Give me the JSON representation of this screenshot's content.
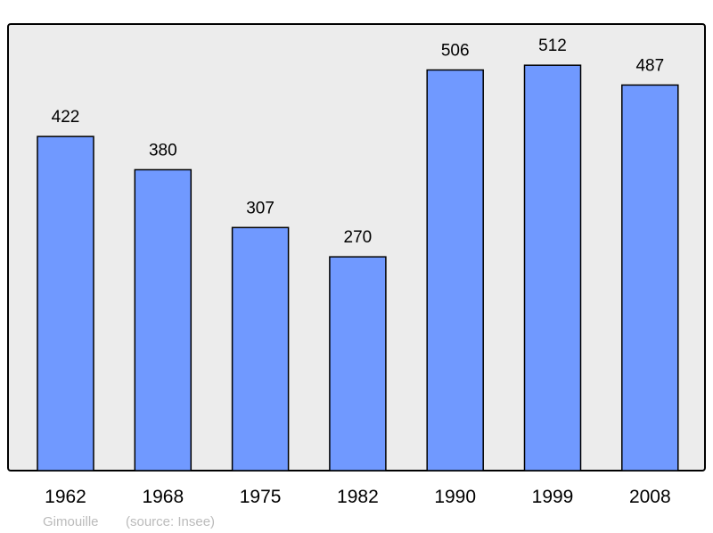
{
  "chart_data": {
    "type": "bar",
    "categories": [
      "1962",
      "1968",
      "1975",
      "1982",
      "1990",
      "1999",
      "2008"
    ],
    "values": [
      422,
      380,
      307,
      270,
      506,
      512,
      487
    ],
    "title": "",
    "xlabel": "",
    "ylabel": "",
    "ylim": [
      0,
      564
    ],
    "grid": false,
    "data_labels": true,
    "colors": {
      "bar": "#7099ff",
      "plot_background": "#ececec",
      "border": "#000000"
    }
  },
  "footer": {
    "commune": "Gimouille",
    "source": "(source: Insee)"
  }
}
